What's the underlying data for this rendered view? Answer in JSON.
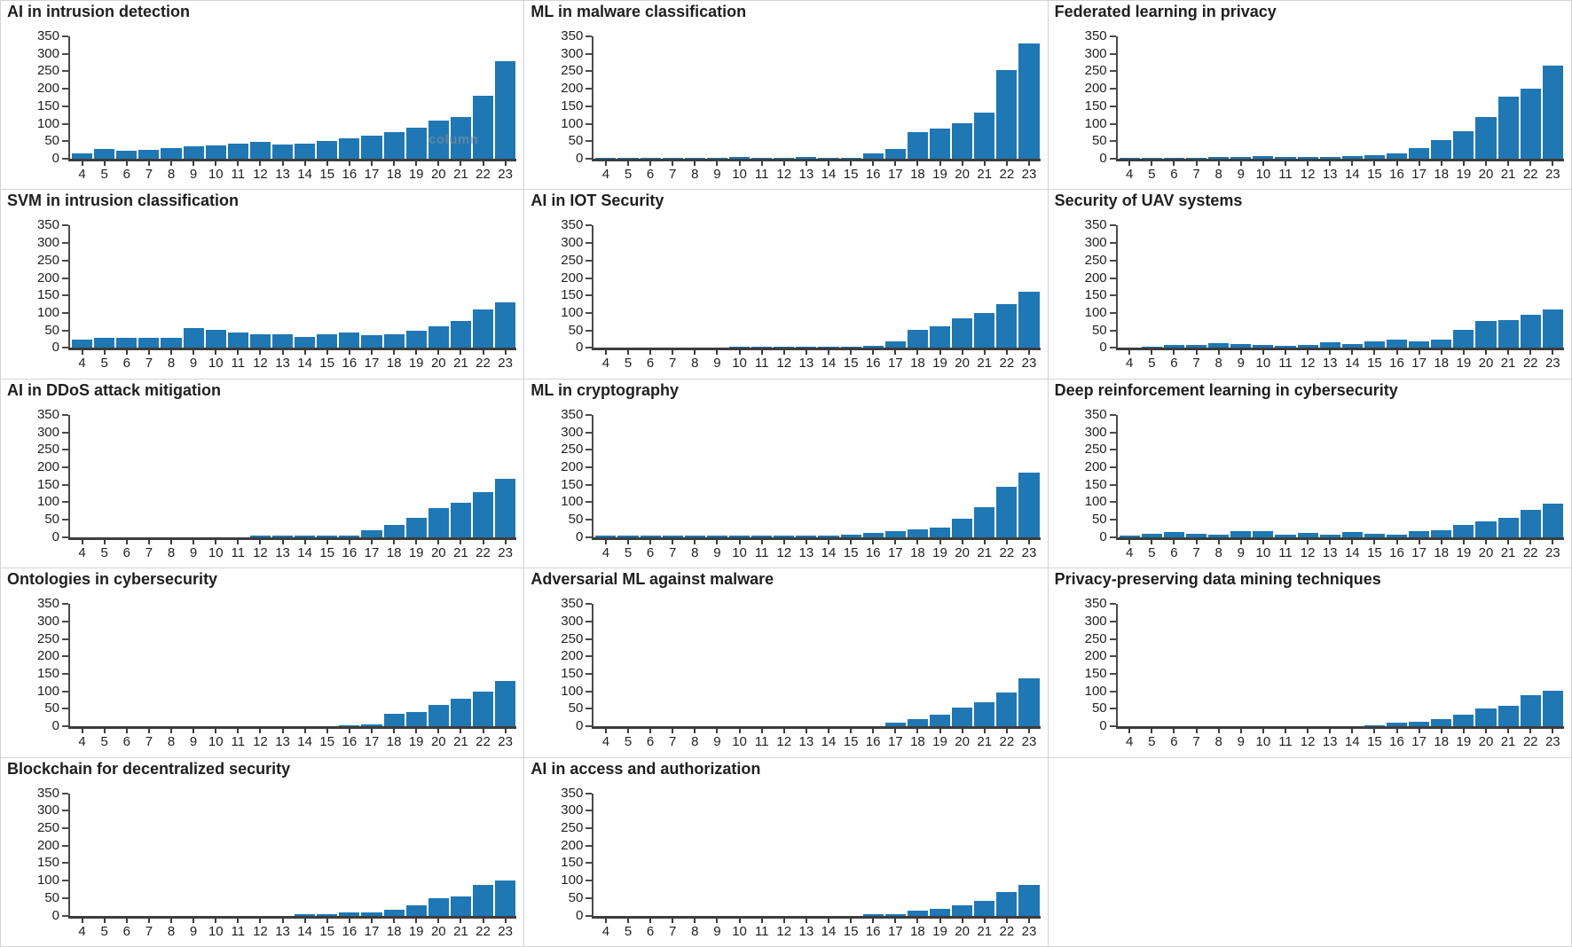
{
  "page": {
    "background": "#ffffff",
    "panel_border": "#d4d4d4"
  },
  "colors": {
    "bar": "#1f77b4",
    "y_axis": "#4a4a4a",
    "x_axis": "#3d3d3d",
    "tick_label": "#1f1f1f",
    "title": "#1f1f1f"
  },
  "watermark": {
    "text": "column",
    "panel_index": 0
  },
  "axis": {
    "ylim": [
      0,
      350
    ],
    "yticks": [
      0,
      50,
      100,
      150,
      200,
      250,
      300,
      350
    ],
    "grid": false,
    "legend": "none"
  },
  "chart_data": [
    {
      "type": "bar",
      "title": "AI in intrusion detection",
      "xlabel": "",
      "ylabel": "",
      "ylim": [
        0,
        350
      ],
      "categories": [
        "4",
        "5",
        "6",
        "7",
        "8",
        "9",
        "10",
        "11",
        "12",
        "13",
        "14",
        "15",
        "16",
        "17",
        "18",
        "19",
        "20",
        "21",
        "22",
        "23"
      ],
      "values": [
        15,
        28,
        23,
        25,
        30,
        35,
        38,
        43,
        48,
        40,
        43,
        50,
        58,
        67,
        77,
        88,
        108,
        120,
        180,
        278
      ]
    },
    {
      "type": "bar",
      "title": "ML in malware classification",
      "xlabel": "",
      "ylabel": "",
      "ylim": [
        0,
        350
      ],
      "categories": [
        "4",
        "5",
        "6",
        "7",
        "8",
        "9",
        "10",
        "11",
        "12",
        "13",
        "14",
        "15",
        "16",
        "17",
        "18",
        "19",
        "20",
        "21",
        "22",
        "23"
      ],
      "values": [
        1,
        1,
        1,
        2,
        1,
        1,
        5,
        2,
        2,
        5,
        2,
        3,
        15,
        27,
        75,
        87,
        101,
        133,
        254,
        330
      ]
    },
    {
      "type": "bar",
      "title": "Federated learning in privacy",
      "xlabel": "",
      "ylabel": "",
      "ylim": [
        0,
        350
      ],
      "categories": [
        "4",
        "5",
        "6",
        "7",
        "8",
        "9",
        "10",
        "11",
        "12",
        "13",
        "14",
        "15",
        "16",
        "17",
        "18",
        "19",
        "20",
        "21",
        "22",
        "23"
      ],
      "values": [
        1,
        2,
        2,
        3,
        4,
        5,
        7,
        5,
        5,
        5,
        7,
        9,
        16,
        31,
        54,
        78,
        120,
        178,
        200,
        267
      ]
    },
    {
      "type": "bar",
      "title": "SVM in intrusion classification",
      "xlabel": "",
      "ylabel": "",
      "ylim": [
        0,
        350
      ],
      "categories": [
        "4",
        "5",
        "6",
        "7",
        "8",
        "9",
        "10",
        "11",
        "12",
        "13",
        "14",
        "15",
        "16",
        "17",
        "18",
        "19",
        "20",
        "21",
        "22",
        "23"
      ],
      "values": [
        25,
        28,
        29,
        30,
        28,
        58,
        51,
        43,
        39,
        40,
        31,
        38,
        45,
        36,
        38,
        49,
        63,
        77,
        110,
        131
      ]
    },
    {
      "type": "bar",
      "title": "AI in IOT Security",
      "xlabel": "",
      "ylabel": "",
      "ylim": [
        0,
        350
      ],
      "categories": [
        "4",
        "5",
        "6",
        "7",
        "8",
        "9",
        "10",
        "11",
        "12",
        "13",
        "14",
        "15",
        "16",
        "17",
        "18",
        "19",
        "20",
        "21",
        "22",
        "23"
      ],
      "values": [
        0,
        0,
        0,
        0,
        0,
        0,
        1,
        3,
        1,
        1,
        4,
        3,
        6,
        19,
        52,
        62,
        85,
        100,
        126,
        162
      ]
    },
    {
      "type": "bar",
      "title": "Security of UAV systems",
      "xlabel": "",
      "ylabel": "",
      "ylim": [
        0,
        350
      ],
      "categories": [
        "4",
        "5",
        "6",
        "7",
        "8",
        "9",
        "10",
        "11",
        "12",
        "13",
        "14",
        "15",
        "16",
        "17",
        "18",
        "19",
        "20",
        "21",
        "22",
        "23"
      ],
      "values": [
        0,
        1,
        8,
        8,
        13,
        12,
        8,
        5,
        8,
        15,
        10,
        18,
        25,
        20,
        23,
        52,
        78,
        80,
        95,
        110
      ]
    },
    {
      "type": "bar",
      "title": "AI in DDoS attack mitigation",
      "xlabel": "",
      "ylabel": "",
      "ylim": [
        0,
        350
      ],
      "categories": [
        "4",
        "5",
        "6",
        "7",
        "8",
        "9",
        "10",
        "11",
        "12",
        "13",
        "14",
        "15",
        "16",
        "17",
        "18",
        "19",
        "20",
        "21",
        "22",
        "23"
      ],
      "values": [
        0,
        0,
        0,
        0,
        0,
        0,
        0,
        0,
        1,
        1,
        1,
        2,
        5,
        20,
        35,
        55,
        82,
        98,
        128,
        167
      ]
    },
    {
      "type": "bar",
      "title": "ML in cryptography",
      "xlabel": "",
      "ylabel": "",
      "ylim": [
        0,
        350
      ],
      "categories": [
        "4",
        "5",
        "6",
        "7",
        "8",
        "9",
        "10",
        "11",
        "12",
        "13",
        "14",
        "15",
        "16",
        "17",
        "18",
        "19",
        "20",
        "21",
        "22",
        "23"
      ],
      "values": [
        1,
        1,
        1,
        1,
        4,
        2,
        1,
        1,
        3,
        5,
        3,
        8,
        13,
        17,
        22,
        28,
        52,
        85,
        145,
        185
      ]
    },
    {
      "type": "bar",
      "title": "Deep reinforcement learning in cybersecurity",
      "xlabel": "",
      "ylabel": "",
      "ylim": [
        0,
        350
      ],
      "categories": [
        "4",
        "5",
        "6",
        "7",
        "8",
        "9",
        "10",
        "11",
        "12",
        "13",
        "14",
        "15",
        "16",
        "17",
        "18",
        "19",
        "20",
        "21",
        "22",
        "23"
      ],
      "values": [
        3,
        10,
        15,
        10,
        6,
        18,
        18,
        6,
        12,
        6,
        16,
        9,
        8,
        17,
        20,
        34,
        46,
        55,
        78,
        96
      ]
    },
    {
      "type": "bar",
      "title": "Ontologies in cybersecurity",
      "xlabel": "",
      "ylabel": "",
      "ylim": [
        0,
        350
      ],
      "categories": [
        "4",
        "5",
        "6",
        "7",
        "8",
        "9",
        "10",
        "11",
        "12",
        "13",
        "14",
        "15",
        "16",
        "17",
        "18",
        "19",
        "20",
        "21",
        "22",
        "23"
      ],
      "values": [
        0,
        0,
        0,
        0,
        0,
        0,
        0,
        0,
        0,
        0,
        0,
        0,
        1,
        5,
        35,
        42,
        62,
        78,
        100,
        131
      ]
    },
    {
      "type": "bar",
      "title": "Adversarial ML against malware",
      "xlabel": "",
      "ylabel": "",
      "ylim": [
        0,
        350
      ],
      "categories": [
        "4",
        "5",
        "6",
        "7",
        "8",
        "9",
        "10",
        "11",
        "12",
        "13",
        "14",
        "15",
        "16",
        "17",
        "18",
        "19",
        "20",
        "21",
        "22",
        "23"
      ],
      "values": [
        0,
        0,
        0,
        0,
        0,
        0,
        0,
        0,
        0,
        0,
        0,
        0,
        0,
        10,
        22,
        33,
        55,
        68,
        97,
        137
      ]
    },
    {
      "type": "bar",
      "title": "Privacy-preserving data mining techniques",
      "xlabel": "",
      "ylabel": "",
      "ylim": [
        0,
        350
      ],
      "categories": [
        "4",
        "5",
        "6",
        "7",
        "8",
        "9",
        "10",
        "11",
        "12",
        "13",
        "14",
        "15",
        "16",
        "17",
        "18",
        "19",
        "20",
        "21",
        "22",
        "23"
      ],
      "values": [
        0,
        0,
        0,
        0,
        0,
        0,
        0,
        0,
        0,
        0,
        0,
        3,
        11,
        12,
        20,
        34,
        50,
        60,
        90,
        102
      ]
    },
    {
      "type": "bar",
      "title": "Blockchain for decentralized security",
      "xlabel": "",
      "ylabel": "",
      "ylim": [
        0,
        350
      ],
      "categories": [
        "4",
        "5",
        "6",
        "7",
        "8",
        "9",
        "10",
        "11",
        "12",
        "13",
        "14",
        "15",
        "16",
        "17",
        "18",
        "19",
        "20",
        "21",
        "22",
        "23"
      ],
      "values": [
        0,
        0,
        0,
        0,
        0,
        0,
        0,
        0,
        0,
        0,
        1,
        3,
        9,
        10,
        18,
        30,
        50,
        55,
        88,
        100
      ]
    },
    {
      "type": "bar",
      "title": "AI in access and authorization",
      "xlabel": "",
      "ylabel": "",
      "ylim": [
        0,
        350
      ],
      "categories": [
        "4",
        "5",
        "6",
        "7",
        "8",
        "9",
        "10",
        "11",
        "12",
        "13",
        "14",
        "15",
        "16",
        "17",
        "18",
        "19",
        "20",
        "21",
        "22",
        "23"
      ],
      "values": [
        0,
        0,
        0,
        0,
        0,
        0,
        0,
        0,
        0,
        0,
        0,
        0,
        4,
        5,
        14,
        20,
        30,
        43,
        68,
        87
      ]
    }
  ]
}
